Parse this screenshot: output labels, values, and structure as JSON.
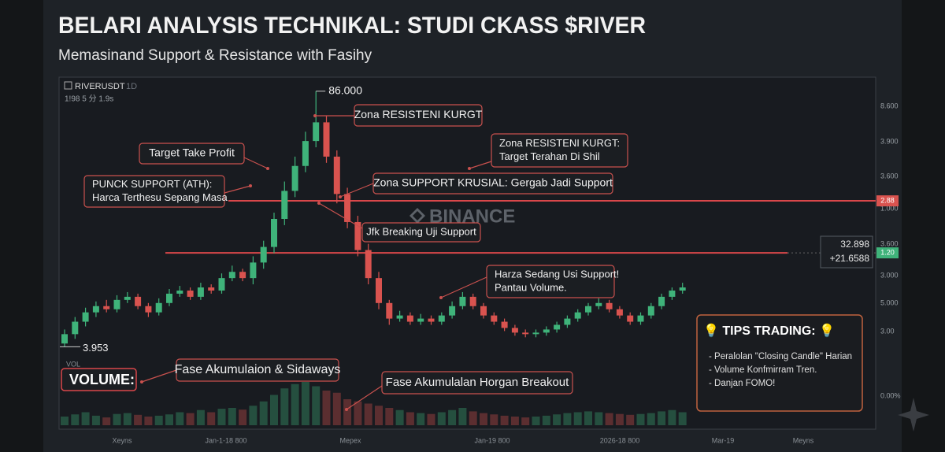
{
  "chart_data": {
    "type": "candlestick",
    "title": "BELARI ANALYSIS TECHNIKAL: STUDI CKASS $RIVER",
    "subtitle": "Memasinand Support & Resistance with Fasihy",
    "symbol": "RIVERUSDT",
    "interval": "1D",
    "header_info": "1!98   5 分   1.9s",
    "watermark": "BINANCE",
    "ylim": [
      0,
      90
    ],
    "opens": [
      5,
      8,
      12,
      15,
      17,
      16,
      19,
      20,
      17,
      15,
      18,
      21,
      22,
      20,
      23,
      22,
      26,
      28,
      26,
      31,
      36,
      45,
      54,
      62,
      70,
      76,
      65,
      53,
      44,
      35,
      26,
      18,
      13,
      14,
      12,
      13,
      12,
      14,
      17,
      20,
      17,
      14,
      12,
      10,
      8.5,
      8,
      8.5,
      9.5,
      11,
      13,
      15,
      17,
      18,
      16,
      14,
      12,
      14,
      17,
      20,
      22
    ],
    "highs": [
      9.5,
      13.5,
      16.5,
      18.5,
      19,
      20.5,
      21.5,
      21,
      18,
      19.5,
      22.5,
      23.5,
      23,
      24.5,
      24,
      27.5,
      30,
      29,
      33,
      38,
      47,
      57,
      65,
      73,
      86,
      78,
      67,
      55,
      46,
      37,
      28,
      19,
      15.5,
      15,
      14.5,
      14,
      15,
      18.5,
      21.5,
      21,
      18,
      15,
      13,
      11,
      9.5,
      9.5,
      10.5,
      12,
      14,
      16,
      18,
      19.5,
      19,
      17,
      15,
      15,
      18,
      21,
      23,
      24.5
    ],
    "lows": [
      3.953,
      6.5,
      10.5,
      13.5,
      15,
      15,
      18,
      16,
      13.5,
      14,
      17,
      20,
      19,
      19,
      21,
      21,
      25,
      25,
      24,
      29,
      34,
      43,
      52,
      60,
      68,
      63,
      50,
      42,
      33,
      24,
      16,
      11,
      12,
      11,
      11,
      11,
      11,
      13,
      16,
      16,
      13,
      11,
      9,
      7.5,
      7,
      7,
      7.5,
      8.5,
      10,
      12,
      14,
      16,
      15,
      13,
      11,
      11,
      13,
      16,
      19,
      21
    ],
    "closes": [
      8,
      12,
      15,
      17,
      16,
      19,
      20,
      17,
      15,
      18,
      21,
      22,
      20,
      23,
      22,
      26,
      28,
      26,
      31,
      36,
      45,
      54,
      62,
      70,
      76,
      65,
      53,
      44,
      35,
      26,
      18,
      13,
      14,
      12,
      13,
      12,
      14,
      17,
      20,
      17,
      14,
      12,
      10,
      8.5,
      8,
      8.5,
      9.5,
      11,
      13,
      15,
      17,
      18,
      16,
      14,
      12,
      14,
      17,
      20,
      22,
      23
    ],
    "volume_label": "VOL",
    "volume_title": "VOLUME:",
    "vlim": [
      0,
      100
    ],
    "volumes": [
      20,
      25,
      30,
      22,
      18,
      26,
      28,
      24,
      20,
      22,
      25,
      30,
      28,
      35,
      30,
      38,
      40,
      36,
      45,
      55,
      70,
      85,
      95,
      100,
      90,
      80,
      75,
      60,
      55,
      50,
      45,
      40,
      35,
      30,
      28,
      26,
      30,
      35,
      40,
      32,
      28,
      25,
      22,
      20,
      18,
      20,
      22,
      25,
      28,
      30,
      32,
      30,
      28,
      26,
      24,
      26,
      28,
      32,
      35,
      30
    ],
    "up_color": "#3fb37a",
    "down_color": "#d9534f",
    "levels": [
      50.8,
      34.1
    ],
    "level_color": "#d9474a",
    "level_labels": [
      "2.88",
      "1.20"
    ],
    "high_label": "86.000",
    "low_label": "3.953",
    "price_box": [
      "32.898",
      "+21.6588"
    ],
    "right_axis_labels": [
      "8.600",
      "3.900",
      "3.600",
      "1.000",
      "3.600",
      "3.000",
      "5.000",
      "3.00",
      "0.00%"
    ],
    "x_axis_labels": [
      "Xeyns",
      "Jan-1-18 800",
      "Mepex",
      "Jan-19 800",
      "2026-18 800",
      "Mar-19",
      "Meyns"
    ],
    "annotations": [
      {
        "lines": [
          "Zona RESISTENI KURGT"
        ]
      },
      {
        "lines": [
          "Target Take Profit"
        ]
      },
      {
        "lines": [
          "Zona RESISTENI KURGT:",
          "Target Terahan Di Shil"
        ]
      },
      {
        "lines": [
          "PUNCK SUPPORT (ATH):",
          "Harca Terthesu Sepang Masa"
        ]
      },
      {
        "lines": [
          "Zona SUPPORT KRUSIAL: Gergab Jadi Support"
        ]
      },
      {
        "lines": [
          "Jfk Breaking Uji Support"
        ]
      },
      {
        "lines": [
          "Harza Sedang Usi Support!",
          "Pantau Volume."
        ]
      },
      {
        "lines": [
          "Fase Akumulaion & Sidaways"
        ]
      },
      {
        "lines": [
          "Fase Akumulalan Horgan Breakout"
        ]
      }
    ],
    "tips": {
      "title": "💡 TIPS TRADING: 💡",
      "items": [
        "- Peralolan \"Closing Candle\" Harian",
        "- Volume Konfmirram Tren.",
        "- Danjan FOMO!"
      ]
    }
  }
}
